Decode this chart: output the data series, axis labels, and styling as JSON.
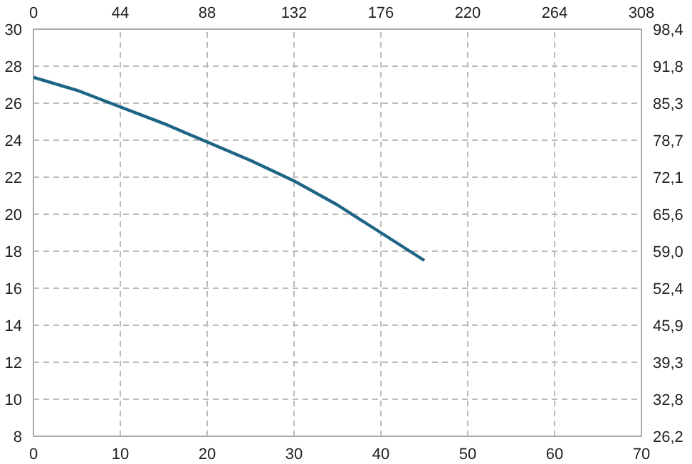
{
  "chart_data": {
    "type": "line",
    "x": [
      0,
      5,
      10,
      15,
      20,
      25,
      30,
      35,
      40,
      45
    ],
    "series": [
      {
        "color": "#1d6485",
        "values": [
          27.4,
          26.7,
          25.8,
          24.9,
          23.9,
          22.9,
          21.8,
          20.5,
          19.0,
          17.5
        ]
      }
    ],
    "xlim": [
      0,
      70
    ],
    "xticks": [
      0,
      10,
      20,
      30,
      40,
      50,
      60,
      70
    ],
    "ylim": [
      8,
      30
    ],
    "yticks": [
      8,
      10,
      12,
      14,
      16,
      18,
      20,
      22,
      24,
      26,
      28,
      30
    ],
    "x2lim": [
      0,
      308
    ],
    "x2ticks": [
      0,
      44,
      88,
      132,
      176,
      220,
      264,
      308
    ],
    "y2lim": [
      26.2,
      98.4
    ],
    "y2ticks": [
      {
        "value": 26.2,
        "label": "26,2"
      },
      {
        "value": 32.8,
        "label": "32,8"
      },
      {
        "value": 39.3,
        "label": "39,3"
      },
      {
        "value": 45.9,
        "label": "45,9"
      },
      {
        "value": 52.4,
        "label": "52,4"
      },
      {
        "value": 59.0,
        "label": "59,0"
      },
      {
        "value": 65.6,
        "label": "65,6"
      },
      {
        "value": 72.1,
        "label": "72,1"
      },
      {
        "value": 78.7,
        "label": "78,7"
      },
      {
        "value": 85.3,
        "label": "85,3"
      },
      {
        "value": 91.8,
        "label": "91,8"
      },
      {
        "value": 98.4,
        "label": "98,4"
      }
    ],
    "grid": true,
    "line_style": "solid"
  }
}
